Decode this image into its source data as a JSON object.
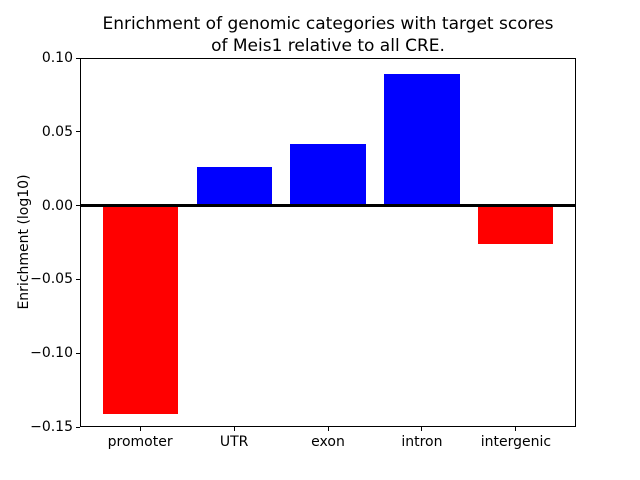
{
  "chart_data": {
    "type": "bar",
    "title": "Enrichment of genomic categories with target scores\nof Meis1 relative to all CRE.",
    "xlabel": "",
    "ylabel": "Enrichment (log10)",
    "categories": [
      "promoter",
      "UTR",
      "exon",
      "intron",
      "intergenic"
    ],
    "values": [
      -0.141,
      0.026,
      0.042,
      0.089,
      -0.026
    ],
    "bar_colors": [
      "#ff0000",
      "#0000ff",
      "#0000ff",
      "#0000ff",
      "#ff0000"
    ],
    "positive_color": "#0000ff",
    "negative_color": "#ff0000",
    "ylim": [
      -0.15,
      0.1
    ],
    "yticks": [
      0.1,
      0.05,
      0.0,
      -0.05,
      -0.1,
      -0.15
    ],
    "ytick_labels": [
      "0.10",
      "0.05",
      "0.00",
      "−0.05",
      "−0.10",
      "−0.15"
    ],
    "grid": false,
    "zero_line": true,
    "legend": null,
    "background_color": "#ffffff",
    "axis_color": "#000000"
  }
}
